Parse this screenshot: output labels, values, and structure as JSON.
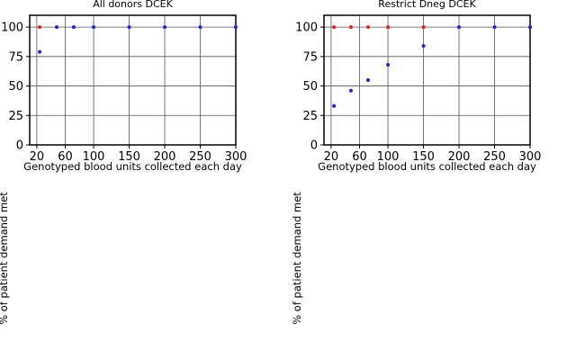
{
  "chart_data": [
    {
      "type": "scatter",
      "title": "All donors DCEK",
      "xlabel": "Genotyped blood units collected each day",
      "ylabel": "% of patient demand met",
      "xlim": [
        10,
        300
      ],
      "ylim": [
        0,
        110
      ],
      "xticks": [
        20,
        60,
        100,
        150,
        200,
        250,
        300
      ],
      "yticks": [
        0,
        25,
        50,
        75,
        100
      ],
      "grid": true,
      "series": [
        {
          "color": "#dd2222",
          "points": [
            [
              24,
              100
            ]
          ]
        },
        {
          "color": "#2222cc",
          "points": [
            [
              24,
              79
            ],
            [
              48,
              100
            ],
            [
              72,
              100
            ],
            [
              100,
              100
            ],
            [
              150,
              100
            ],
            [
              200,
              100
            ],
            [
              250,
              100
            ],
            [
              300,
              100
            ]
          ]
        }
      ]
    },
    {
      "type": "scatter",
      "title": "Restrict Dneg DCEK",
      "xlabel": "Genotyped blood units collected each day",
      "ylabel": "% of patient demand met",
      "xlim": [
        10,
        300
      ],
      "ylim": [
        0,
        110
      ],
      "xticks": [
        20,
        60,
        100,
        150,
        200,
        250,
        300
      ],
      "yticks": [
        0,
        25,
        50,
        75,
        100
      ],
      "grid": true,
      "series": [
        {
          "color": "#dd2222",
          "points": [
            [
              24,
              100
            ],
            [
              48,
              100
            ],
            [
              72,
              100
            ],
            [
              100,
              100
            ],
            [
              150,
              100
            ]
          ]
        },
        {
          "color": "#2222cc",
          "points": [
            [
              24,
              33
            ],
            [
              48,
              46
            ],
            [
              72,
              55
            ],
            [
              100,
              68
            ],
            [
              150,
              84
            ],
            [
              200,
              100
            ],
            [
              250,
              100
            ],
            [
              300,
              100
            ]
          ]
        }
      ]
    }
  ]
}
